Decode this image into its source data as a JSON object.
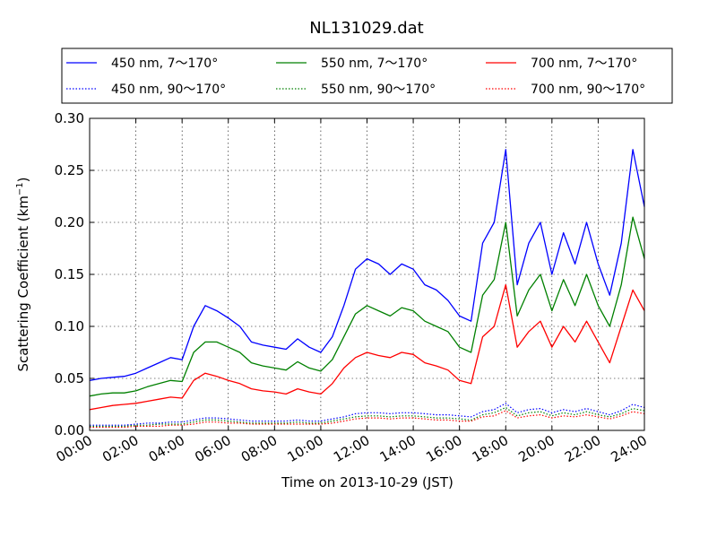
{
  "chart_data": {
    "type": "line",
    "title": "NL131029.dat",
    "xlabel": "Time on 2013-10-29 (JST)",
    "ylabel": "Scattering Coefficient (km",
    "ylabel_sup": "−1",
    "ylabel_suffix": ")",
    "xlim": [
      "00:00",
      "24:00"
    ],
    "ylim": [
      0.0,
      0.3
    ],
    "grid": true,
    "legend_position": "top",
    "x_ticks": [
      "00:00",
      "02:00",
      "04:00",
      "06:00",
      "08:00",
      "10:00",
      "12:00",
      "14:00",
      "16:00",
      "18:00",
      "20:00",
      "22:00",
      "24:00"
    ],
    "y_ticks": [
      "0.00",
      "0.05",
      "0.10",
      "0.15",
      "0.20",
      "0.25",
      "0.30"
    ],
    "x": [
      "00:00",
      "00:30",
      "01:00",
      "01:30",
      "02:00",
      "02:30",
      "03:00",
      "03:30",
      "04:00",
      "04:30",
      "05:00",
      "05:30",
      "06:00",
      "06:30",
      "07:00",
      "07:30",
      "08:00",
      "08:30",
      "09:00",
      "09:30",
      "10:00",
      "10:30",
      "11:00",
      "11:30",
      "12:00",
      "12:30",
      "13:00",
      "13:30",
      "14:00",
      "14:30",
      "15:00",
      "15:30",
      "16:00",
      "16:30",
      "17:00",
      "17:30",
      "18:00",
      "18:30",
      "19:00",
      "19:30",
      "20:00",
      "20:30",
      "21:00",
      "21:30",
      "22:00",
      "22:30",
      "23:00",
      "23:30",
      "24:00"
    ],
    "series": [
      {
        "name": "450 nm, 7～170°",
        "color": "#0000ff",
        "style": "solid",
        "values": [
          0.048,
          0.05,
          0.051,
          0.052,
          0.055,
          0.06,
          0.065,
          0.07,
          0.068,
          0.1,
          0.12,
          0.115,
          0.108,
          0.1,
          0.085,
          0.082,
          0.08,
          0.078,
          0.088,
          0.08,
          0.075,
          0.09,
          0.12,
          0.155,
          0.165,
          0.16,
          0.15,
          0.16,
          0.155,
          0.14,
          0.135,
          0.125,
          0.11,
          0.105,
          0.18,
          0.2,
          0.27,
          0.14,
          0.18,
          0.2,
          0.15,
          0.19,
          0.16,
          0.2,
          0.16,
          0.13,
          0.18,
          0.27,
          0.215
        ]
      },
      {
        "name": "450 nm, 90～170°",
        "color": "#0000ff",
        "style": "dotted",
        "values": [
          0.005,
          0.005,
          0.005,
          0.005,
          0.006,
          0.007,
          0.007,
          0.008,
          0.008,
          0.01,
          0.012,
          0.012,
          0.011,
          0.01,
          0.009,
          0.009,
          0.009,
          0.009,
          0.01,
          0.009,
          0.009,
          0.011,
          0.013,
          0.016,
          0.017,
          0.017,
          0.016,
          0.017,
          0.017,
          0.016,
          0.015,
          0.015,
          0.014,
          0.013,
          0.018,
          0.02,
          0.026,
          0.017,
          0.02,
          0.021,
          0.017,
          0.02,
          0.018,
          0.021,
          0.018,
          0.015,
          0.019,
          0.025,
          0.022
        ]
      },
      {
        "name": "550 nm, 7～170°",
        "color": "#008000",
        "style": "solid",
        "values": [
          0.033,
          0.035,
          0.036,
          0.036,
          0.038,
          0.042,
          0.045,
          0.048,
          0.047,
          0.075,
          0.085,
          0.085,
          0.08,
          0.075,
          0.065,
          0.062,
          0.06,
          0.058,
          0.066,
          0.06,
          0.057,
          0.068,
          0.09,
          0.112,
          0.12,
          0.115,
          0.11,
          0.118,
          0.115,
          0.105,
          0.1,
          0.095,
          0.08,
          0.075,
          0.13,
          0.145,
          0.2,
          0.11,
          0.135,
          0.15,
          0.115,
          0.145,
          0.12,
          0.15,
          0.12,
          0.1,
          0.14,
          0.205,
          0.165
        ]
      },
      {
        "name": "550 nm, 90～170°",
        "color": "#008000",
        "style": "dotted",
        "values": [
          0.004,
          0.004,
          0.004,
          0.004,
          0.005,
          0.005,
          0.006,
          0.006,
          0.006,
          0.008,
          0.01,
          0.01,
          0.009,
          0.008,
          0.007,
          0.007,
          0.007,
          0.007,
          0.008,
          0.007,
          0.007,
          0.009,
          0.011,
          0.013,
          0.014,
          0.014,
          0.013,
          0.014,
          0.014,
          0.013,
          0.012,
          0.012,
          0.011,
          0.01,
          0.015,
          0.017,
          0.022,
          0.014,
          0.017,
          0.018,
          0.014,
          0.017,
          0.015,
          0.018,
          0.015,
          0.013,
          0.016,
          0.021,
          0.019
        ]
      },
      {
        "name": "700 nm, 7～170°",
        "color": "#ff0000",
        "style": "solid",
        "values": [
          0.02,
          0.022,
          0.024,
          0.025,
          0.026,
          0.028,
          0.03,
          0.032,
          0.031,
          0.048,
          0.055,
          0.052,
          0.048,
          0.045,
          0.04,
          0.038,
          0.037,
          0.035,
          0.04,
          0.037,
          0.035,
          0.045,
          0.06,
          0.07,
          0.075,
          0.072,
          0.07,
          0.075,
          0.073,
          0.065,
          0.062,
          0.058,
          0.048,
          0.045,
          0.09,
          0.1,
          0.14,
          0.08,
          0.095,
          0.105,
          0.08,
          0.1,
          0.085,
          0.105,
          0.085,
          0.065,
          0.1,
          0.135,
          0.115
        ]
      },
      {
        "name": "700 nm, 90～170°",
        "color": "#ff0000",
        "style": "dotted",
        "values": [
          0.003,
          0.003,
          0.003,
          0.003,
          0.004,
          0.004,
          0.004,
          0.005,
          0.005,
          0.006,
          0.008,
          0.008,
          0.007,
          0.007,
          0.006,
          0.006,
          0.006,
          0.006,
          0.006,
          0.006,
          0.006,
          0.007,
          0.009,
          0.011,
          0.012,
          0.012,
          0.011,
          0.012,
          0.012,
          0.011,
          0.01,
          0.01,
          0.009,
          0.009,
          0.013,
          0.014,
          0.019,
          0.012,
          0.014,
          0.015,
          0.012,
          0.014,
          0.013,
          0.015,
          0.013,
          0.011,
          0.014,
          0.018,
          0.016
        ]
      }
    ]
  }
}
